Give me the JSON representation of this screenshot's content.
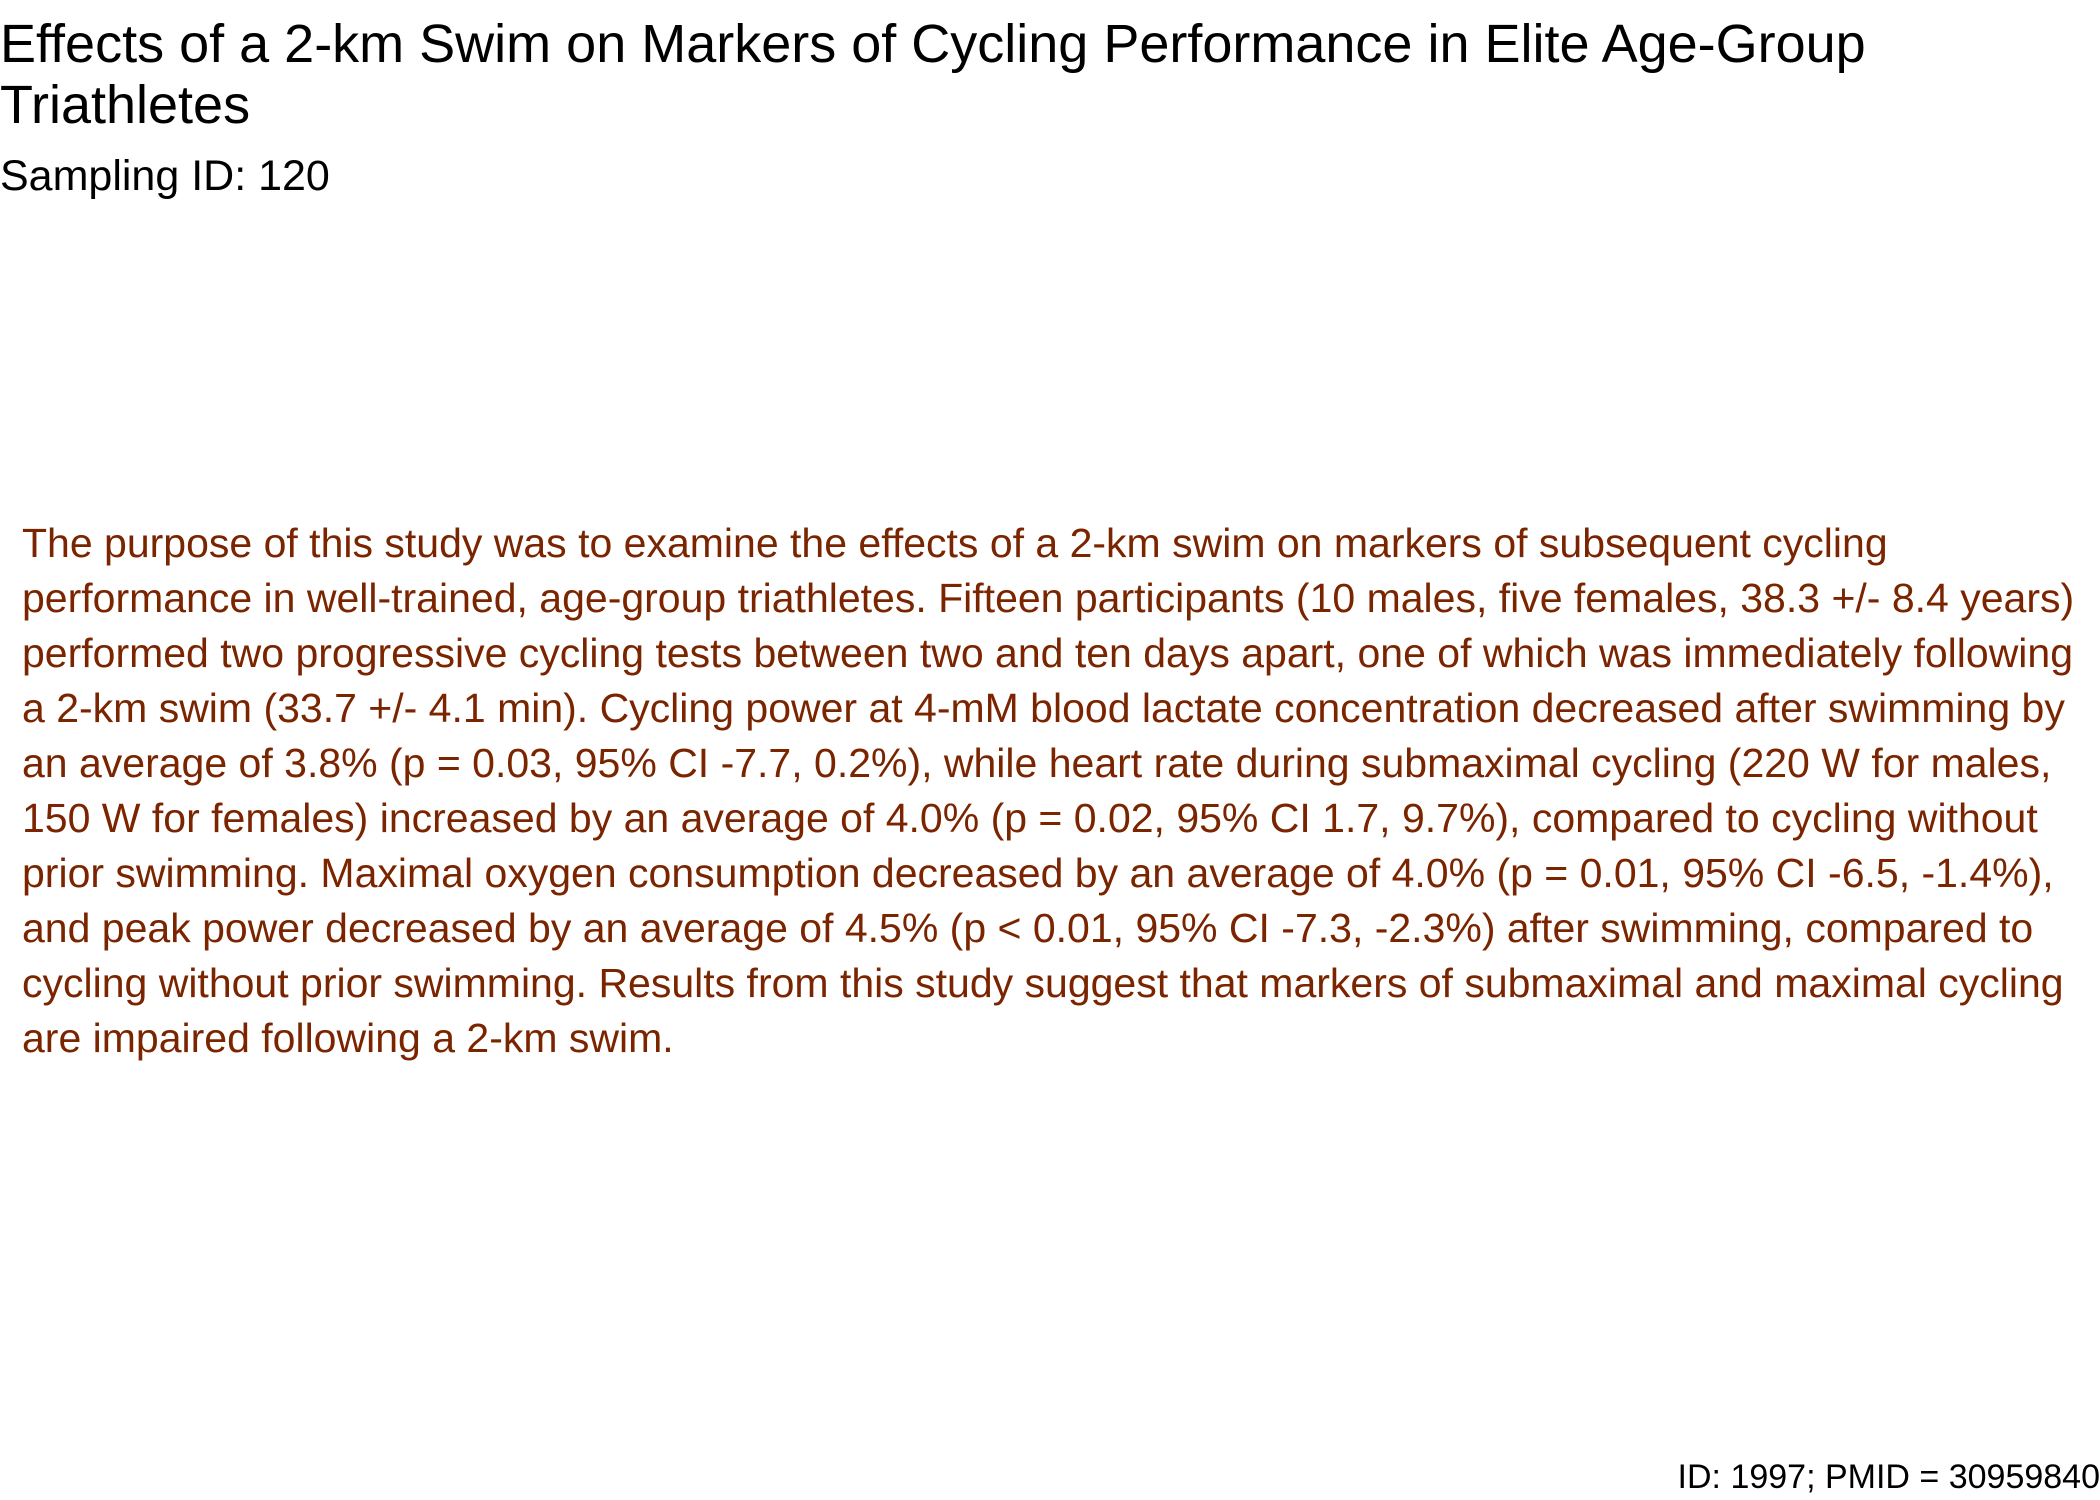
{
  "document": {
    "title": "Effects of a 2-km Swim on Markers of Cycling Performance in Elite Age-Group Triathletes",
    "sampling_id": "Sampling ID: 120",
    "abstract": "The purpose of this study was to examine the effects of a 2-km swim on markers of subsequent cycling performance in well-trained, age-group triathletes. Fifteen participants (10 males, five females, 38.3 +/- 8.4 years) performed two progressive cycling tests between two and ten days apart, one of which was immediately following a 2-km swim (33.7 +/- 4.1 min). Cycling power at 4-mM blood lactate concentration decreased after swimming by an average of 3.8% (p = 0.03, 95% CI -7.7, 0.2%), while heart rate during submaximal cycling (220 W for males, 150 W for females) increased by an average of 4.0% (p = 0.02, 95% CI 1.7, 9.7%), compared to cycling without prior swimming. Maximal oxygen consumption decreased by an average of 4.0% (p = 0.01, 95% CI -6.5, -1.4%), and peak power decreased by an average of 4.5% (p < 0.01, 95% CI -7.3, -2.3%) after swimming, compared to cycling without prior swimming. Results from this study suggest that markers of submaximal and maximal cycling are impaired following a 2-km swim.",
    "footer": "ID: 1997; PMID = 30959840"
  },
  "colors": {
    "title_text": "#000000",
    "abstract_text": "#7a2400",
    "background": "#ffffff"
  }
}
